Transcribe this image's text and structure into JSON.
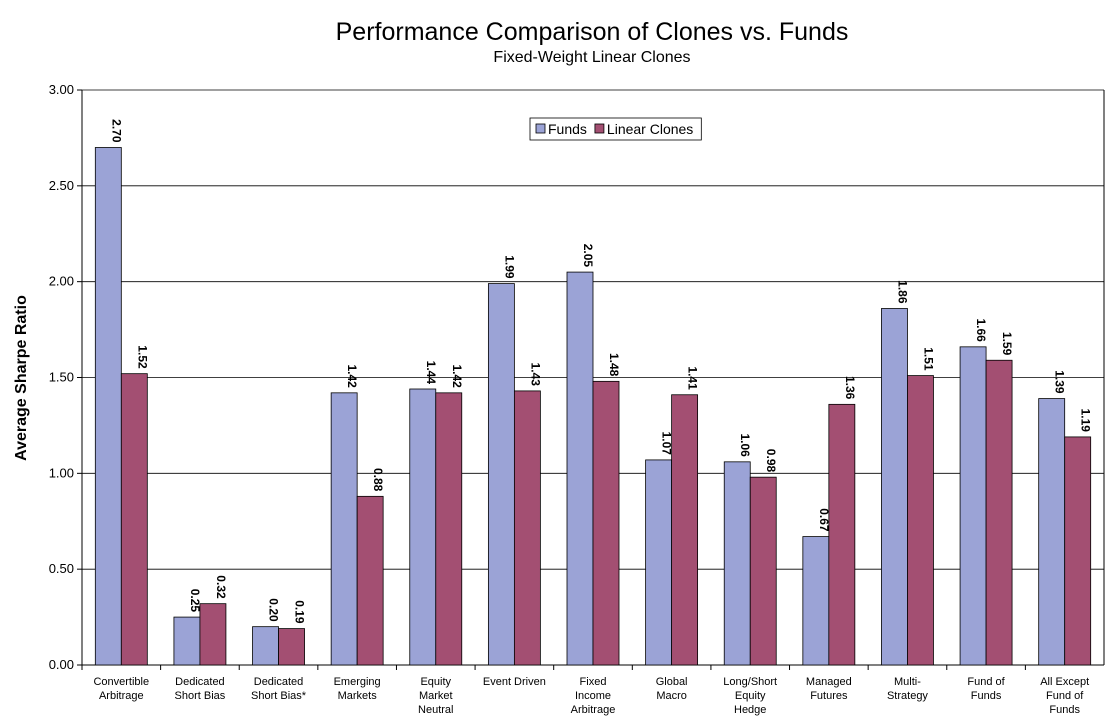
{
  "chart_data": {
    "type": "bar",
    "title": "Performance Comparison of Clones vs. Funds",
    "subtitle": "Fixed-Weight Linear Clones",
    "y_label": "Average Sharpe Ratio",
    "categories": [
      "Convertible Arbitrage",
      "Dedicated Short Bias",
      "Dedicated Short Bias*",
      "Emerging Markets",
      "Equity Market Neutral",
      "Event Driven",
      "Fixed Income Arbitrage",
      "Global Macro",
      "Long/Short Equity Hedge",
      "Managed Futures",
      "Multi-Strategy",
      "Fund of Funds",
      "All Except Fund of Funds"
    ],
    "series": [
      {
        "name": "Funds",
        "color": "#9ba3d6",
        "values": [
          2.7,
          0.25,
          0.2,
          1.42,
          1.44,
          1.99,
          2.05,
          1.07,
          1.06,
          0.67,
          1.86,
          1.66,
          1.39
        ],
        "value_labels": [
          "2.70",
          "0.25",
          "0.20",
          "1.42",
          "1.44",
          "1.99",
          "2.05",
          "1.07",
          "1.06",
          "0.67",
          "1.86",
          "1.66",
          "1.39"
        ]
      },
      {
        "name": "Linear Clones",
        "color": "#a34f72",
        "values": [
          1.52,
          0.32,
          0.19,
          0.88,
          1.42,
          1.43,
          1.48,
          1.41,
          0.98,
          1.36,
          1.51,
          1.59,
          1.19
        ],
        "value_labels": [
          "1.52",
          "0.32",
          "0.19",
          "0.88",
          "1.42",
          "1.43",
          "1.48",
          "1.41",
          "0.98",
          "1.36",
          "1.51",
          "1.59",
          "1.19"
        ]
      }
    ],
    "ylim": [
      0,
      3
    ],
    "yticks": [
      {
        "value": 0,
        "label": "0.00"
      },
      {
        "value": 0.5,
        "label": "0.50"
      },
      {
        "value": 1,
        "label": "1.00"
      },
      {
        "value": 1.5,
        "label": "1.50"
      },
      {
        "value": 2,
        "label": "2.00"
      },
      {
        "value": 2.5,
        "label": "2.50"
      },
      {
        "value": 3,
        "label": "3.00"
      }
    ],
    "grid": true,
    "legend": "top"
  }
}
